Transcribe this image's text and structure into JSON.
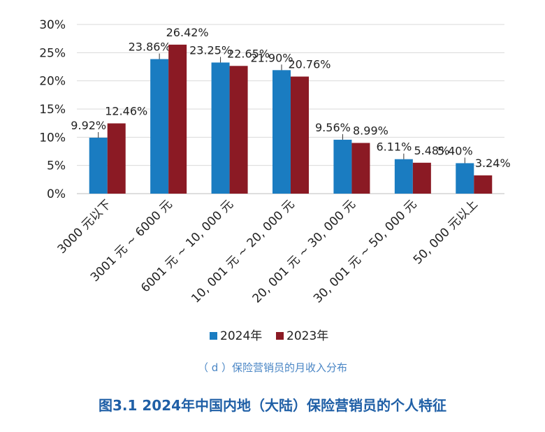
{
  "chart_data": {
    "type": "bar",
    "categories": [
      "3000 元以下",
      "3001 元 ~ 6000 元",
      "6001 元 ~ 10, 000 元",
      "10, 001 元 ~ 20, 000 元",
      "20, 001 元 ~ 30, 000 元",
      "30, 001 元 ~ 50, 000 元",
      "50, 000 元以上"
    ],
    "series": [
      {
        "name": "2024年",
        "color": "#1a7cc1",
        "values": [
          9.92,
          23.86,
          23.25,
          21.9,
          9.56,
          6.11,
          5.4
        ],
        "labels": [
          "9.92%",
          "23.86%",
          "23.25%",
          "21.90%",
          "9.56%",
          "6.11%",
          "5.40%"
        ]
      },
      {
        "name": "2023年",
        "color": "#8b1a24",
        "values": [
          12.46,
          26.42,
          22.65,
          20.76,
          8.99,
          5.48,
          3.24
        ],
        "labels": [
          "12.46%",
          "26.42%",
          "22.65%",
          "20.76%",
          "8.99%",
          "5.48%",
          "3.24%"
        ]
      }
    ],
    "yticks": [
      0,
      5,
      10,
      15,
      20,
      25,
      30
    ],
    "ytick_labels": [
      "0%",
      "5%",
      "10%",
      "15%",
      "20%",
      "25%",
      "30%"
    ],
    "ylim": [
      0,
      30
    ],
    "grid": true,
    "legend": "bottom-center"
  },
  "subcaption": "（ d ）保险营销员的月收入分布",
  "caption": "图3.1 2024年中国内地（大陆）保险营销员的个人特征"
}
